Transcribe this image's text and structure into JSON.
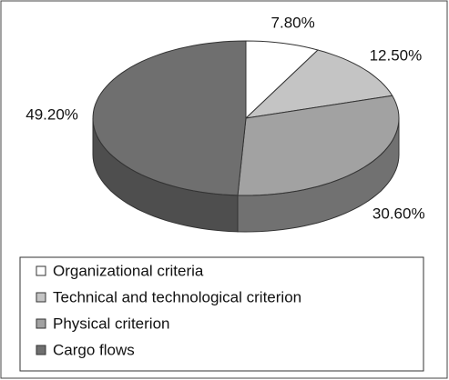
{
  "chart_data": {
    "type": "pie3d",
    "categories": [
      "Organizational criteria",
      "Technical and technological criterion",
      "Physical criterion",
      "Cargo flows"
    ],
    "values": [
      7.8,
      12.5,
      30.6,
      49.2
    ],
    "value_labels": [
      "7.80%",
      "12.50%",
      "30.60%",
      "49.20%"
    ],
    "colors": [
      "#ffffff",
      "#c4c4c4",
      "#a2a2a2",
      "#6f6f6f"
    ],
    "legend": "bottom"
  }
}
